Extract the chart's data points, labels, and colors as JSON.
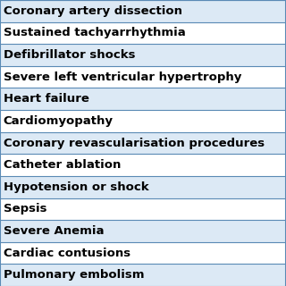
{
  "rows": [
    "Coronary artery dissection",
    "Sustained tachyarrhythmia",
    "Defibrillator shocks",
    "Severe left ventricular hypertrophy",
    "Heart failure",
    "Cardiomyopathy",
    "Coronary revascularisation procedures",
    "Catheter ablation",
    "Hypotension or shock",
    "Sepsis",
    "Severe Anemia",
    "Cardiac contusions",
    "Pulmonary embolism"
  ],
  "bg_color_odd": "#dce9f5",
  "bg_color_even": "#ffffff",
  "border_color": "#5a8ab5",
  "text_color": "#000000",
  "font_size": 9.5,
  "fig_width": 3.2,
  "fig_height": 3.2
}
